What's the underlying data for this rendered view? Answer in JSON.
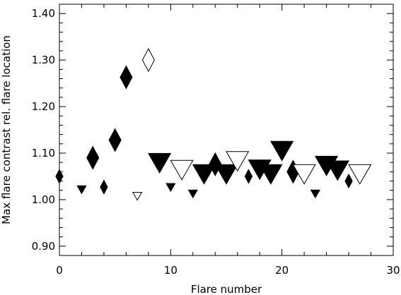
{
  "chart_data": {
    "type": "scatter",
    "title": "",
    "xlabel": "Flare number",
    "ylabel": "Max flare contrast rel. flare location",
    "xlim": [
      0,
      30
    ],
    "ylim": [
      0.88,
      1.42
    ],
    "x_ticks": [
      0,
      10,
      20,
      30
    ],
    "x_tick_labels": [
      "0",
      "10",
      "20",
      "30"
    ],
    "y_ticks": [
      0.9,
      1.0,
      1.1,
      1.2,
      1.3,
      1.4
    ],
    "y_tick_labels": [
      "0.90",
      "1.00",
      "1.10",
      "1.20",
      "1.30",
      "1.40"
    ],
    "grid": false,
    "legend": "none",
    "marker_note": "diamond and downward-triangle markers of varying size; filled or open",
    "points": [
      {
        "x": 0,
        "y": 1.05,
        "marker": "diamond",
        "filled": true,
        "size": "small"
      },
      {
        "x": 2,
        "y": 1.022,
        "marker": "triangle",
        "filled": true,
        "size": "small"
      },
      {
        "x": 3,
        "y": 1.09,
        "marker": "diamond",
        "filled": true,
        "size": "medium"
      },
      {
        "x": 4,
        "y": 1.027,
        "marker": "diamond",
        "filled": true,
        "size": "small"
      },
      {
        "x": 5,
        "y": 1.128,
        "marker": "diamond",
        "filled": true,
        "size": "medium"
      },
      {
        "x": 6,
        "y": 1.263,
        "marker": "diamond",
        "filled": true,
        "size": "medium"
      },
      {
        "x": 7,
        "y": 1.008,
        "marker": "triangle",
        "filled": false,
        "size": "small"
      },
      {
        "x": 8,
        "y": 1.3,
        "marker": "diamond",
        "filled": false,
        "size": "medium"
      },
      {
        "x": 9,
        "y": 1.08,
        "marker": "triangle",
        "filled": true,
        "size": "large"
      },
      {
        "x": 10,
        "y": 1.027,
        "marker": "triangle",
        "filled": true,
        "size": "small"
      },
      {
        "x": 11,
        "y": 1.065,
        "marker": "triangle",
        "filled": false,
        "size": "large"
      },
      {
        "x": 12,
        "y": 1.013,
        "marker": "triangle",
        "filled": true,
        "size": "small"
      },
      {
        "x": 13,
        "y": 1.056,
        "marker": "triangle",
        "filled": true,
        "size": "large"
      },
      {
        "x": 14,
        "y": 1.076,
        "marker": "diamond",
        "filled": true,
        "size": "medium"
      },
      {
        "x": 15,
        "y": 1.056,
        "marker": "triangle",
        "filled": true,
        "size": "large"
      },
      {
        "x": 16,
        "y": 1.084,
        "marker": "triangle",
        "filled": false,
        "size": "large"
      },
      {
        "x": 17,
        "y": 1.05,
        "marker": "diamond",
        "filled": true,
        "size": "small"
      },
      {
        "x": 18,
        "y": 1.066,
        "marker": "triangle",
        "filled": true,
        "size": "large"
      },
      {
        "x": 19,
        "y": 1.056,
        "marker": "triangle",
        "filled": true,
        "size": "large"
      },
      {
        "x": 20,
        "y": 1.106,
        "marker": "triangle",
        "filled": true,
        "size": "large"
      },
      {
        "x": 21,
        "y": 1.06,
        "marker": "diamond",
        "filled": true,
        "size": "medium"
      },
      {
        "x": 22,
        "y": 1.056,
        "marker": "triangle",
        "filled": false,
        "size": "large"
      },
      {
        "x": 23,
        "y": 1.013,
        "marker": "triangle",
        "filled": true,
        "size": "small"
      },
      {
        "x": 24,
        "y": 1.074,
        "marker": "triangle",
        "filled": true,
        "size": "large"
      },
      {
        "x": 25,
        "y": 1.064,
        "marker": "triangle",
        "filled": true,
        "size": "large"
      },
      {
        "x": 26,
        "y": 1.04,
        "marker": "diamond",
        "filled": true,
        "size": "small"
      },
      {
        "x": 27,
        "y": 1.056,
        "marker": "triangle",
        "filled": false,
        "size": "large"
      }
    ]
  }
}
